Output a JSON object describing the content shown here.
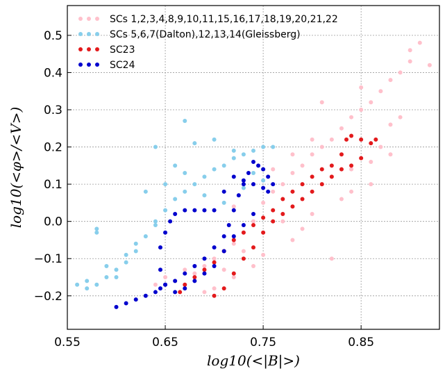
{
  "chart_data": {
    "type": "scatter",
    "title": "",
    "xlabel": "log10(<|B|>)",
    "ylabel": "log10(<φ>/<V>)",
    "xlim": [
      0.55,
      0.93
    ],
    "ylim": [
      -0.29,
      0.58
    ],
    "xticks": [
      0.55,
      0.65,
      0.75,
      0.85
    ],
    "xtick_labels": [
      "0.55",
      "0.65",
      "0.75",
      "0.85"
    ],
    "yticks": [
      -0.2,
      -0.1,
      0.0,
      0.1,
      0.2,
      0.3,
      0.4,
      0.5
    ],
    "ytick_labels": [
      "−0.2",
      "−0.1",
      "0.0",
      "0.1",
      "0.2",
      "0.3",
      "0.4",
      "0.5"
    ],
    "grid": true,
    "legend_position": "top-left",
    "series": [
      {
        "name": "SCs 1,2,3,4,8,9,10,11,15,16,17,18,19,20,21,22",
        "color": "#ffc0cb",
        "x": [
          0.64,
          0.65,
          0.66,
          0.67,
          0.68,
          0.69,
          0.7,
          0.7,
          0.71,
          0.72,
          0.72,
          0.73,
          0.74,
          0.74,
          0.75,
          0.76,
          0.77,
          0.78,
          0.78,
          0.79,
          0.8,
          0.8,
          0.81,
          0.82,
          0.83,
          0.84,
          0.85,
          0.86,
          0.87,
          0.88,
          0.89,
          0.9,
          0.74,
          0.76,
          0.78,
          0.8,
          0.82,
          0.84,
          0.86,
          0.88,
          0.9,
          0.91,
          0.92,
          0.72,
          0.75,
          0.79,
          0.83,
          0.87,
          0.81,
          0.85,
          0.89,
          0.77,
          0.73,
          0.71,
          0.69,
          0.68,
          0.82,
          0.86,
          0.88,
          0.84
        ],
        "y": [
          -0.17,
          -0.15,
          -0.16,
          -0.13,
          -0.14,
          -0.12,
          -0.1,
          -0.18,
          -0.08,
          -0.06,
          -0.15,
          -0.03,
          0.0,
          -0.12,
          0.05,
          0.08,
          0.1,
          0.13,
          -0.05,
          0.15,
          0.18,
          0.02,
          0.2,
          0.22,
          0.25,
          0.28,
          0.3,
          0.32,
          0.35,
          0.38,
          0.4,
          0.43,
          0.1,
          0.14,
          0.18,
          0.22,
          0.12,
          0.08,
          0.16,
          0.26,
          0.46,
          0.48,
          0.42,
          0.04,
          -0.09,
          -0.02,
          0.06,
          0.2,
          0.32,
          0.36,
          0.28,
          0.0,
          -0.08,
          -0.13,
          -0.19,
          -0.12,
          -0.1,
          0.1,
          0.18,
          0.14
        ]
      },
      {
        "name": "SCs 5,6,7(Dalton),12,13,14(Gleissberg)",
        "color": "#87ceeb",
        "x": [
          0.56,
          0.57,
          0.58,
          0.59,
          0.6,
          0.61,
          0.62,
          0.63,
          0.64,
          0.65,
          0.66,
          0.67,
          0.68,
          0.69,
          0.7,
          0.71,
          0.72,
          0.73,
          0.74,
          0.75,
          0.76,
          0.57,
          0.58,
          0.59,
          0.61,
          0.63,
          0.65,
          0.67,
          0.62,
          0.64,
          0.66,
          0.68,
          0.7,
          0.72,
          0.74,
          0.69,
          0.71,
          0.73,
          0.75,
          0.67,
          0.64,
          0.6,
          0.58
        ],
        "y": [
          -0.17,
          -0.16,
          -0.02,
          -0.15,
          -0.13,
          -0.11,
          -0.08,
          -0.04,
          -0.01,
          0.03,
          0.06,
          0.08,
          0.1,
          0.12,
          0.14,
          0.15,
          0.17,
          0.18,
          0.19,
          0.2,
          0.2,
          -0.18,
          -0.03,
          -0.12,
          -0.09,
          0.08,
          0.1,
          0.13,
          -0.06,
          0.0,
          0.15,
          0.21,
          0.22,
          0.19,
          0.13,
          0.07,
          0.05,
          0.09,
          0.11,
          0.27,
          0.2,
          -0.15,
          -0.17
        ]
      },
      {
        "name": "SC23",
        "color": "#e31a1c",
        "x": [
          0.665,
          0.67,
          0.68,
          0.69,
          0.7,
          0.71,
          0.72,
          0.73,
          0.74,
          0.75,
          0.76,
          0.77,
          0.78,
          0.79,
          0.8,
          0.81,
          0.82,
          0.83,
          0.835,
          0.84,
          0.85,
          0.86,
          0.865,
          0.7,
          0.71,
          0.72,
          0.73,
          0.74,
          0.75,
          0.76,
          0.77,
          0.78,
          0.79,
          0.8,
          0.81,
          0.82,
          0.83,
          0.84,
          0.85
        ],
        "y": [
          -0.19,
          -0.17,
          -0.15,
          -0.13,
          -0.11,
          -0.08,
          -0.05,
          -0.03,
          -0.01,
          0.01,
          0.03,
          0.06,
          0.08,
          0.1,
          0.12,
          0.14,
          0.15,
          0.18,
          0.22,
          0.23,
          0.22,
          0.21,
          0.22,
          -0.2,
          -0.18,
          -0.14,
          -0.1,
          -0.07,
          -0.03,
          0.0,
          0.02,
          0.04,
          0.06,
          0.08,
          0.1,
          0.12,
          0.14,
          0.15,
          0.17
        ]
      },
      {
        "name": "SC24",
        "color": "#0000cd",
        "x": [
          0.6,
          0.61,
          0.62,
          0.63,
          0.64,
          0.645,
          0.65,
          0.66,
          0.67,
          0.68,
          0.69,
          0.7,
          0.71,
          0.715,
          0.72,
          0.725,
          0.73,
          0.735,
          0.74,
          0.745,
          0.75,
          0.755,
          0.76,
          0.755,
          0.75,
          0.74,
          0.73,
          0.72,
          0.71,
          0.7,
          0.69,
          0.68,
          0.67,
          0.66,
          0.655,
          0.65,
          0.645,
          0.645,
          0.65,
          0.66,
          0.67,
          0.68,
          0.69,
          0.7,
          0.71,
          0.72,
          0.73,
          0.74
        ],
        "y": [
          -0.23,
          -0.22,
          -0.21,
          -0.2,
          -0.19,
          -0.18,
          -0.17,
          -0.16,
          -0.14,
          -0.12,
          -0.1,
          -0.07,
          -0.04,
          -0.01,
          0.03,
          0.07,
          0.1,
          0.13,
          0.16,
          0.15,
          0.14,
          0.12,
          0.1,
          0.08,
          0.09,
          0.1,
          0.11,
          0.12,
          0.08,
          0.03,
          0.03,
          0.03,
          0.03,
          0.02,
          0.0,
          -0.03,
          -0.07,
          -0.13,
          -0.17,
          -0.19,
          -0.18,
          -0.16,
          -0.14,
          -0.12,
          -0.08,
          -0.04,
          -0.01,
          0.02
        ]
      }
    ]
  }
}
